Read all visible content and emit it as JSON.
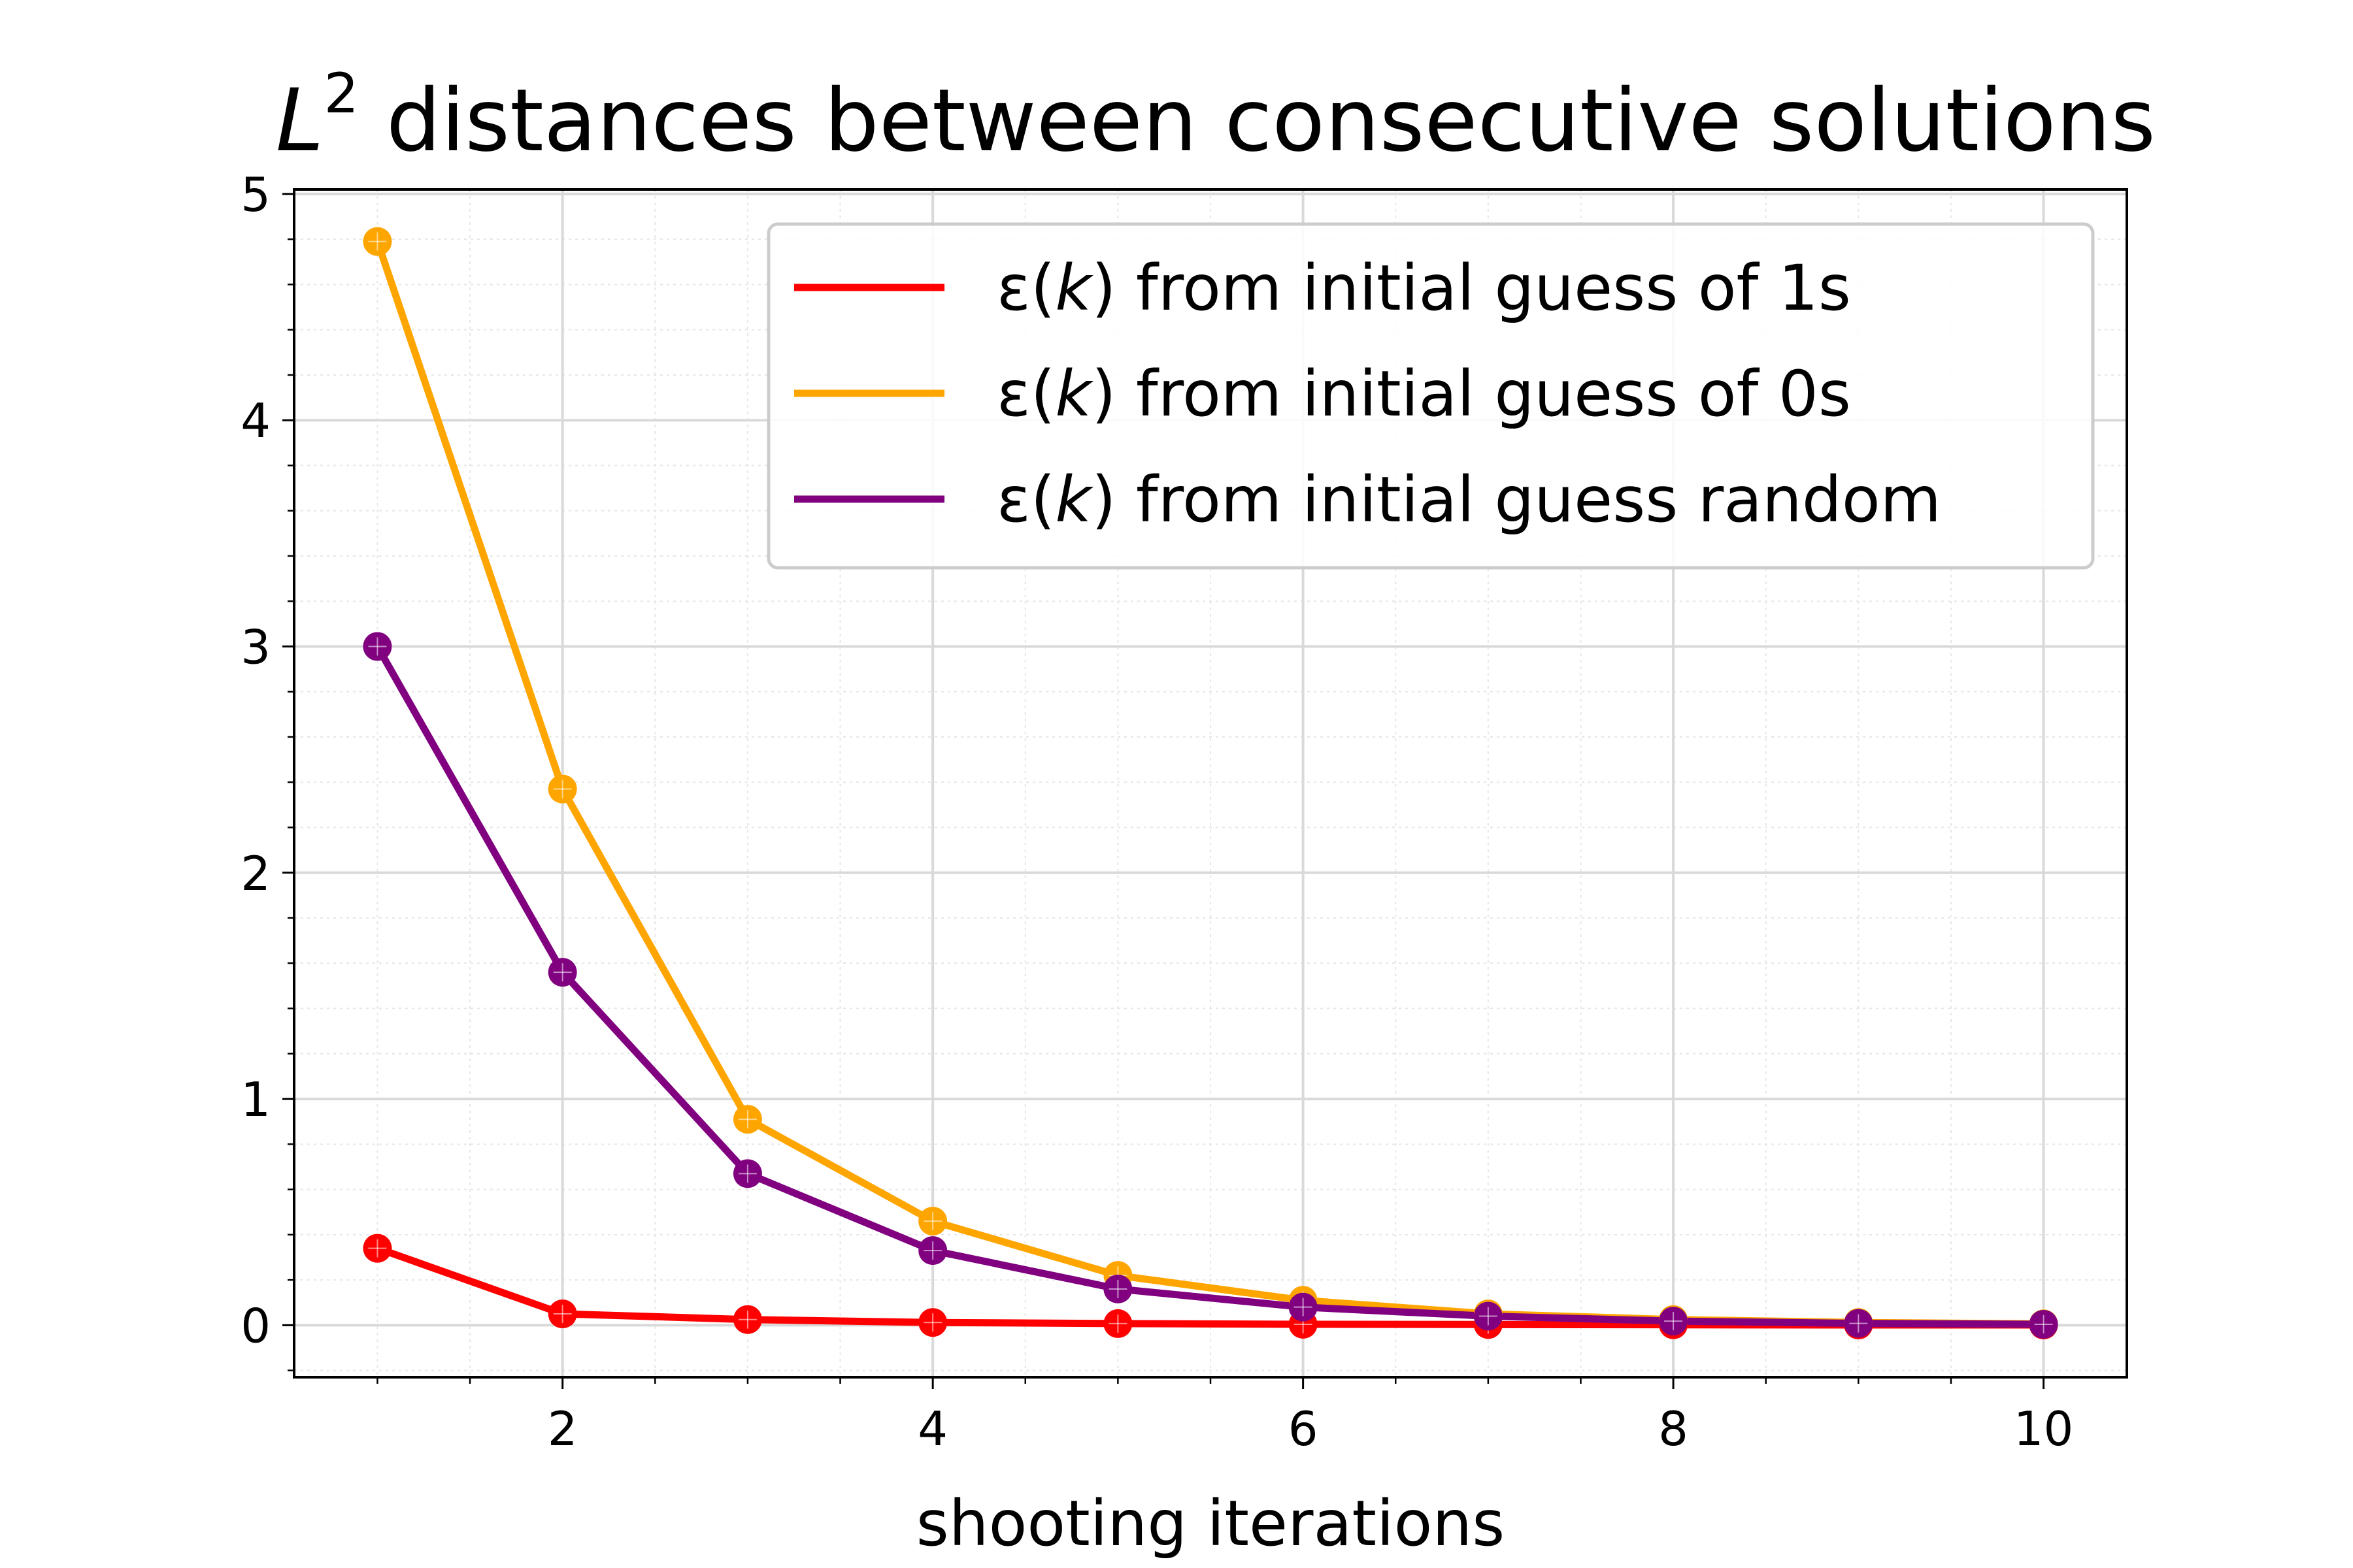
{
  "chart_data": {
    "type": "line",
    "title_base": "L",
    "title_sup": "2",
    "title_rest": " distances between consecutive solutions",
    "xlabel": "shooting iterations",
    "ylabel": "",
    "xlim": [
      0.55,
      10.45
    ],
    "ylim": [
      -0.23,
      5.02
    ],
    "x_ticks": [
      2,
      4,
      6,
      8,
      10
    ],
    "y_ticks": [
      0,
      1,
      2,
      3,
      4,
      5
    ],
    "x_minor_step": 0.5,
    "y_minor_step": 0.2,
    "grid": true,
    "minor_grid": true,
    "legend_position": "upper right",
    "x": [
      1,
      2,
      3,
      4,
      5,
      6,
      7,
      8,
      9,
      10
    ],
    "series": [
      {
        "name": "ε(k) from initial guess of 1s",
        "legend_prefix": "ε(",
        "legend_var": "k",
        "legend_suffix": ") from initial guess of 1s",
        "color": "#ff0000",
        "values": [
          0.34,
          0.05,
          0.025,
          0.012,
          0.007,
          0.004,
          0.003,
          0.002,
          0.001,
          0.001
        ]
      },
      {
        "name": "ε(k) from initial guess of 0s",
        "legend_prefix": "ε(",
        "legend_var": "k",
        "legend_suffix": ") from initial guess of 0s",
        "color": "#ffa500",
        "values": [
          4.79,
          2.37,
          0.91,
          0.46,
          0.22,
          0.11,
          0.05,
          0.025,
          0.012,
          0.006
        ]
      },
      {
        "name": "ε(k) from initial guess random",
        "legend_prefix": "ε(",
        "legend_var": "k",
        "legend_suffix": ") from initial guess random",
        "color": "#800080",
        "values": [
          3.0,
          1.56,
          0.67,
          0.33,
          0.16,
          0.08,
          0.04,
          0.018,
          0.008,
          0.004
        ]
      }
    ]
  }
}
